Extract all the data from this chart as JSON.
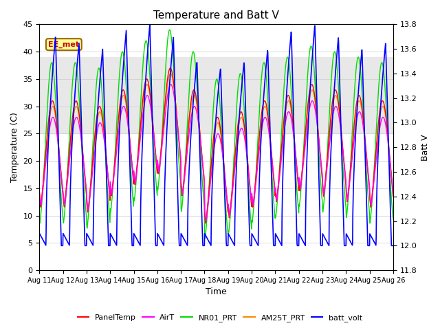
{
  "title": "Temperature and Batt V",
  "xlabel": "Time",
  "ylabel_left": "Temperature (C)",
  "ylabel_right": "Batt V",
  "ylim_left": [
    0,
    45
  ],
  "ylim_right": [
    11.8,
    13.8
  ],
  "yticks_left": [
    0,
    5,
    10,
    15,
    20,
    25,
    30,
    35,
    40,
    45
  ],
  "yticks_right": [
    11.8,
    12.0,
    12.2,
    12.4,
    12.6,
    12.8,
    13.0,
    13.2,
    13.4,
    13.6,
    13.8
  ],
  "xtick_labels": [
    "Aug 11",
    "Aug 12",
    "Aug 13",
    "Aug 14",
    "Aug 15",
    "Aug 16",
    "Aug 17",
    "Aug 18",
    "Aug 19",
    "Aug 20",
    "Aug 21",
    "Aug 22",
    "Aug 23",
    "Aug 24",
    "Aug 25",
    "Aug 26"
  ],
  "annotation_text": "EE_met",
  "legend_entries": [
    "PanelTemp",
    "AirT",
    "NR01_PRT",
    "AM25T_PRT",
    "batt_volt"
  ],
  "legend_colors": [
    "#ff0000",
    "#ff00ff",
    "#00dd00",
    "#ff8800",
    "#0000ff"
  ],
  "series_colors": {
    "PanelTemp": "#ff0000",
    "AirT": "#ff00ff",
    "NR01_PRT": "#00dd00",
    "AM25T_PRT": "#ff8800",
    "batt_volt": "#0000ff"
  },
  "shaded_region": [
    25,
    39
  ],
  "shaded_color": "#e8e8e8"
}
